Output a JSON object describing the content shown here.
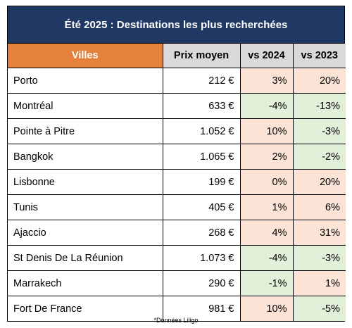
{
  "title": "Été 2025 : Destinations les plus recherchées",
  "headers": [
    "Villes",
    "Prix moyen",
    "vs 2024",
    "vs 2023"
  ],
  "rows": [
    {
      "city": "Porto",
      "price": "212 €",
      "vs2024": "3%",
      "vs2023": "20%"
    },
    {
      "city": "Montréal",
      "price": "633 €",
      "vs2024": "-4%",
      "vs2023": "-13%"
    },
    {
      "city": "Pointe à Pitre",
      "price": "1.052 €",
      "vs2024": "10%",
      "vs2023": "-3%"
    },
    {
      "city": "Bangkok",
      "price": "1.065 €",
      "vs2024": "2%",
      "vs2023": "-2%"
    },
    {
      "city": "Lisbonne",
      "price": "199 €",
      "vs2024": "0%",
      "vs2023": "20%"
    },
    {
      "city": "Tunis",
      "price": "405 €",
      "vs2024": "1%",
      "vs2023": "6%"
    },
    {
      "city": "Ajaccio",
      "price": "268 €",
      "vs2024": "4%",
      "vs2023": "31%"
    },
    {
      "city": "St Denis De La Réunion",
      "price": "1.073 €",
      "vs2024": "-4%",
      "vs2023": "-3%"
    },
    {
      "city": "Marrakech",
      "price": "290 €",
      "vs2024": "-1%",
      "vs2023": "1%"
    },
    {
      "city": "Fort De France",
      "price": "981 €",
      "vs2024": "10%",
      "vs2023": "-5%"
    }
  ],
  "source": "*Données Liligo",
  "colors": {
    "title_bg": "#1f3864",
    "villes_header_bg": "#e4813a",
    "header_bg": "#d9d9d9",
    "increase_bg": "#fbe4d5",
    "decrease_bg": "#e2efd9"
  }
}
